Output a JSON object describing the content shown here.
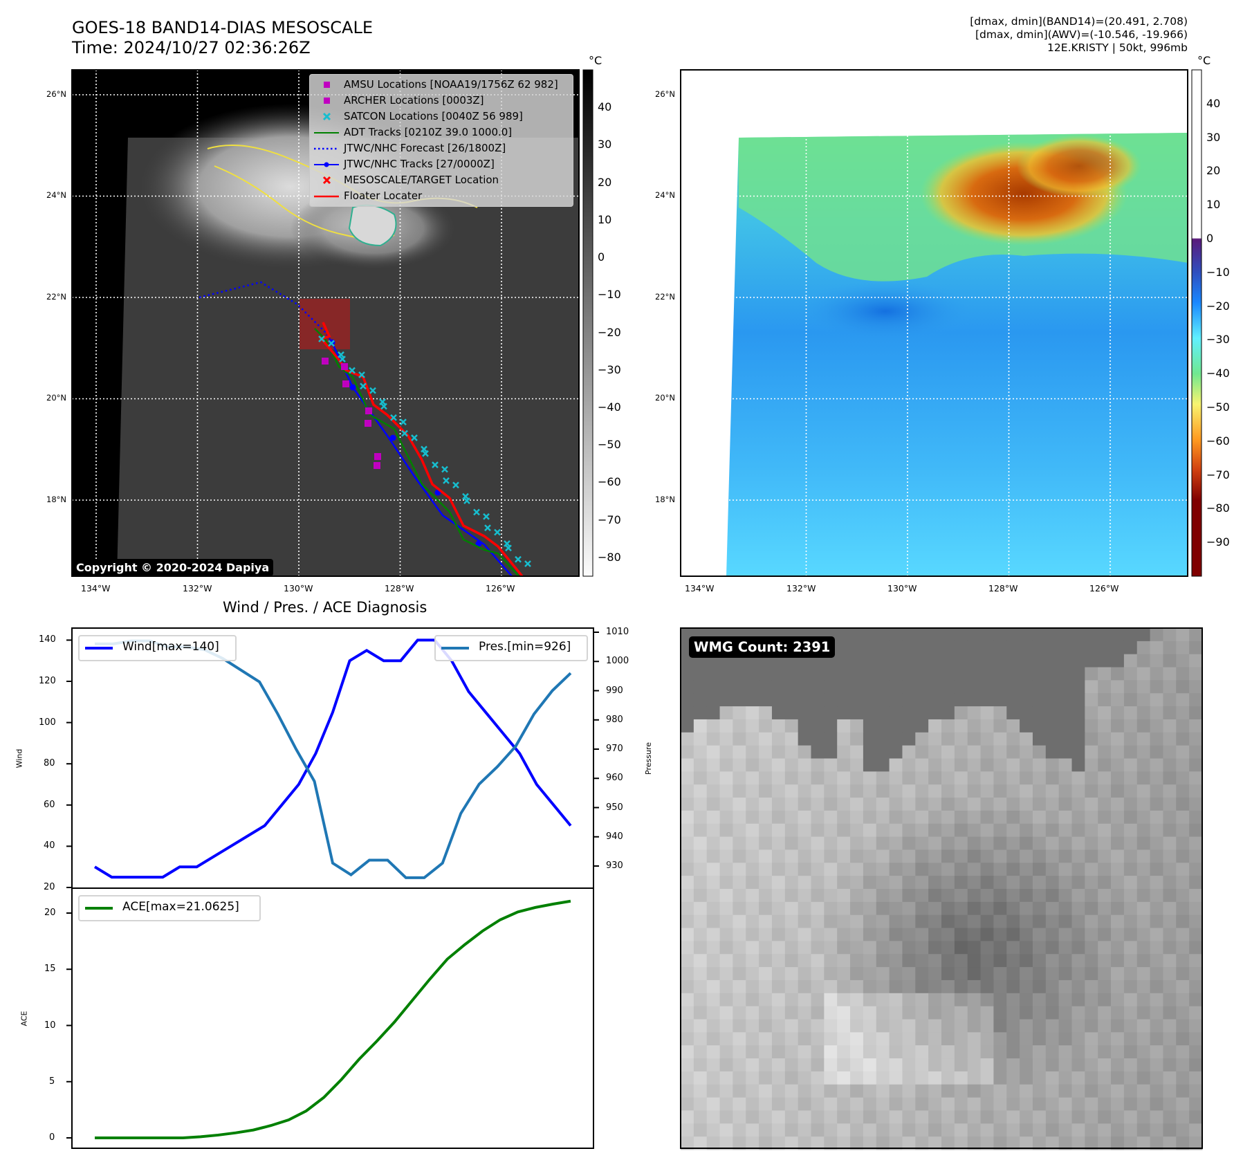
{
  "header": {
    "title": "GOES-18 BAND14-DIAS MESOSCALE",
    "time": "Time: 2024/10/27 02:36:26Z",
    "info_line1": "[dmax, dmin](BAND14)=(20.491, 2.708)",
    "info_line2": "[dmax, dmin](AWV)=(-10.546, -19.966)",
    "info_line3": "12E.KRISTY | 50kt, 996mb"
  },
  "maps": {
    "lat_ticks": [
      "26°N",
      "24°N",
      "22°N",
      "20°N",
      "18°N"
    ],
    "lat_values": [
      26,
      24,
      22,
      20,
      18
    ],
    "lon_ticks": [
      "134°W",
      "132°W",
      "130°W",
      "128°W",
      "126°W"
    ],
    "lon_values": [
      -134,
      -132,
      -130,
      -128,
      -126
    ],
    "copyright": "Copyright © 2020-2024 Dapiya"
  },
  "colorbar_left": {
    "unit": "°C",
    "ticks": [
      "40",
      "30",
      "20",
      "10",
      "0",
      "−10",
      "−20",
      "−30",
      "−40",
      "−50",
      "−60",
      "−70",
      "−80"
    ],
    "tick_values": [
      40,
      30,
      20,
      10,
      0,
      -10,
      -20,
      -30,
      -40,
      -50,
      -60,
      -70,
      -80
    ],
    "range": [
      50,
      -85
    ]
  },
  "colorbar_right": {
    "unit": "°C",
    "ticks": [
      "40",
      "30",
      "20",
      "10",
      "0",
      "−10",
      "−20",
      "−30",
      "−40",
      "−50",
      "−60",
      "−70",
      "−80",
      "−90"
    ],
    "tick_values": [
      40,
      30,
      20,
      10,
      0,
      -10,
      -20,
      -30,
      -40,
      -50,
      -60,
      -70,
      -80,
      -90
    ],
    "range": [
      50,
      -100
    ]
  },
  "legend": {
    "items": [
      {
        "label": "AMSU Locations [NOAA19/1756Z 62 982]",
        "symbol": "square",
        "color": "#c000c0"
      },
      {
        "label": "ARCHER Locations [0003Z]",
        "symbol": "square",
        "color": "#c000c0"
      },
      {
        "label": "SATCON Locations [0040Z 56 989]",
        "symbol": "x",
        "color": "#17becf"
      },
      {
        "label": "ADT Tracks [0210Z 39.0 1000.0]",
        "symbol": "line",
        "color": "#008000"
      },
      {
        "label": "JTWC/NHC Forecast [26/1800Z]",
        "symbol": "dotted",
        "color": "#0000ff"
      },
      {
        "label": "JTWC/NHC Tracks [27/0000Z]",
        "symbol": "line-dot",
        "color": "#0000ff"
      },
      {
        "label": "MESOSCALE/TARGET Location",
        "symbol": "x",
        "color": "#ff0000"
      },
      {
        "label": "Floater Locater",
        "symbol": "line",
        "color": "#ff0000"
      }
    ]
  },
  "wmg": {
    "badge": "WMG Count: 2391"
  },
  "chart_data": [
    {
      "type": "line",
      "title": "Wind / Pres. / ACE Diagnosis",
      "ylabel": "Wind",
      "ylabel_right": "Pressure",
      "ylim": [
        20,
        146
      ],
      "ylim_right": [
        922,
        1012
      ],
      "yticks": [
        20,
        40,
        60,
        80,
        100,
        120,
        140
      ],
      "yticks_right": [
        930,
        940,
        950,
        960,
        970,
        980,
        990,
        1000,
        1010
      ],
      "series": [
        {
          "name": "Wind[max=140]",
          "color": "#0000ff",
          "values": [
            30,
            25,
            25,
            25,
            25,
            30,
            30,
            35,
            40,
            45,
            50,
            60,
            70,
            85,
            105,
            130,
            135,
            130,
            130,
            140,
            140,
            130,
            115,
            105,
            95,
            85,
            70,
            60,
            50
          ]
        },
        {
          "name": "Pres.[min=926]",
          "color": "#1f77b4",
          "axis": "right",
          "values": [
            1006,
            1006,
            1007,
            1007,
            1005,
            1005,
            1004,
            1001,
            997,
            993,
            982,
            970,
            959,
            931,
            927,
            932,
            932,
            926,
            926,
            931,
            948,
            958,
            964,
            971,
            982,
            990,
            996
          ]
        }
      ]
    },
    {
      "type": "line",
      "ylabel": "ACE",
      "ylim": [
        -1,
        21.6
      ],
      "yticks": [
        0,
        5,
        10,
        15,
        20
      ],
      "series": [
        {
          "name": "ACE[max=21.0625]",
          "color": "#008000",
          "values": [
            0,
            0,
            0,
            0,
            0,
            0,
            0.1,
            0.25,
            0.45,
            0.7,
            1.1,
            1.6,
            2.4,
            3.6,
            5.2,
            7.0,
            8.6,
            10.3,
            12.2,
            14.1,
            15.9,
            17.2,
            18.4,
            19.4,
            20.1,
            20.5,
            20.8,
            21.0625
          ]
        }
      ]
    }
  ]
}
